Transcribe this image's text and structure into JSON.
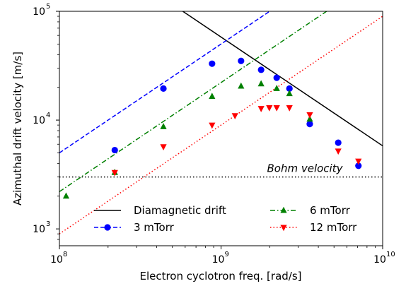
{
  "chart_data": {
    "type": "scatter",
    "xlabel": "Electron cyclotron freq. [rad/s]",
    "ylabel": "Azimuthal drift velocity [m/s]",
    "xscale": "log",
    "yscale": "log",
    "xlim": [
      100000000.0,
      10000000000.0
    ],
    "ylim": [
      700,
      100000.0
    ],
    "grid": false,
    "legend_position": "lower-center",
    "x_ticks": [
      {
        "value": 100000000.0,
        "base": "10",
        "exp": "8"
      },
      {
        "value": 1000000000.0,
        "base": "10",
        "exp": "9"
      },
      {
        "value": 10000000000.0,
        "base": "10",
        "exp": "10"
      }
    ],
    "y_ticks": [
      {
        "value": 1000.0,
        "base": "10",
        "exp": "3"
      },
      {
        "value": 10000.0,
        "base": "10",
        "exp": "4"
      },
      {
        "value": 100000.0,
        "base": "10",
        "exp": "5"
      }
    ],
    "annotation": {
      "text": "Bohm velocity",
      "x": 3300000000.0,
      "y": 3200
    },
    "lines": [
      {
        "name": "Diamagnetic drift",
        "color": "#000000",
        "dash": "solid",
        "points": [
          [
            580000000.0,
            100000.0
          ],
          [
            10000000000.0,
            5800
          ]
        ]
      },
      {
        "name": "",
        "color": "#000000",
        "dash": "dotted",
        "points": [
          [
            100000000.0,
            3000
          ],
          [
            10000000000.0,
            3000
          ]
        ]
      },
      {
        "name": "",
        "color": "#0000ff",
        "dash": "dashed",
        "points": [
          [
            100000000.0,
            5000
          ],
          [
            2000000000.0,
            100000.0
          ]
        ]
      },
      {
        "name": "",
        "color": "#008000",
        "dash": "dashdot",
        "points": [
          [
            100000000.0,
            2200
          ],
          [
            4500000000.0,
            100000.0
          ]
        ]
      },
      {
        "name": "",
        "color": "#ff0000",
        "dash": "dotted",
        "points": [
          [
            100000000.0,
            900
          ],
          [
            10000000000.0,
            90000
          ]
        ]
      }
    ],
    "series": [
      {
        "name": "3 mTorr",
        "color": "#0000ff",
        "marker": "circle",
        "line_dash": "dashed",
        "points": [
          [
            220000000.0,
            5300
          ],
          [
            440000000.0,
            19500
          ],
          [
            880000000.0,
            33000
          ],
          [
            1330000000.0,
            35000
          ],
          [
            1770000000.0,
            29000
          ],
          [
            2210000000.0,
            24500
          ],
          [
            2650000000.0,
            19500
          ],
          [
            3540000000.0,
            9200
          ],
          [
            5310000000.0,
            6200
          ],
          [
            7080000000.0,
            3800
          ]
        ]
      },
      {
        "name": "6 mTorr",
        "color": "#008000",
        "marker": "triangle-up",
        "line_dash": "dashdot",
        "points": [
          [
            110000000.0,
            2000
          ],
          [
            220000000.0,
            3300
          ],
          [
            440000000.0,
            8700
          ],
          [
            880000000.0,
            16500
          ],
          [
            1330000000.0,
            20500
          ],
          [
            1770000000.0,
            21500
          ],
          [
            2210000000.0,
            19500
          ],
          [
            2650000000.0,
            17500
          ],
          [
            3540000000.0,
            10200
          ]
        ]
      },
      {
        "name": "12 mTorr",
        "color": "#ff0000",
        "marker": "triangle-down",
        "line_dash": "dotted",
        "points": [
          [
            220000000.0,
            3300
          ],
          [
            440000000.0,
            5700
          ],
          [
            880000000.0,
            9000
          ],
          [
            1220000000.0,
            11000
          ],
          [
            1770000000.0,
            12800
          ],
          [
            1990000000.0,
            13000
          ],
          [
            2210000000.0,
            13000
          ],
          [
            2650000000.0,
            13000
          ],
          [
            3540000000.0,
            11200
          ],
          [
            5310000000.0,
            5200
          ],
          [
            7080000000.0,
            4200
          ]
        ]
      }
    ],
    "legend": [
      {
        "label": "Diamagnetic drift",
        "color": "#000000",
        "dash": "solid",
        "marker": "none"
      },
      {
        "label": "6 mTorr",
        "color": "#008000",
        "dash": "dashdot",
        "marker": "triangle-up"
      },
      {
        "label": "3 mTorr",
        "color": "#0000ff",
        "dash": "dashed",
        "marker": "circle"
      },
      {
        "label": "12 mTorr",
        "color": "#ff0000",
        "dash": "dotted",
        "marker": "triangle-down"
      }
    ]
  }
}
